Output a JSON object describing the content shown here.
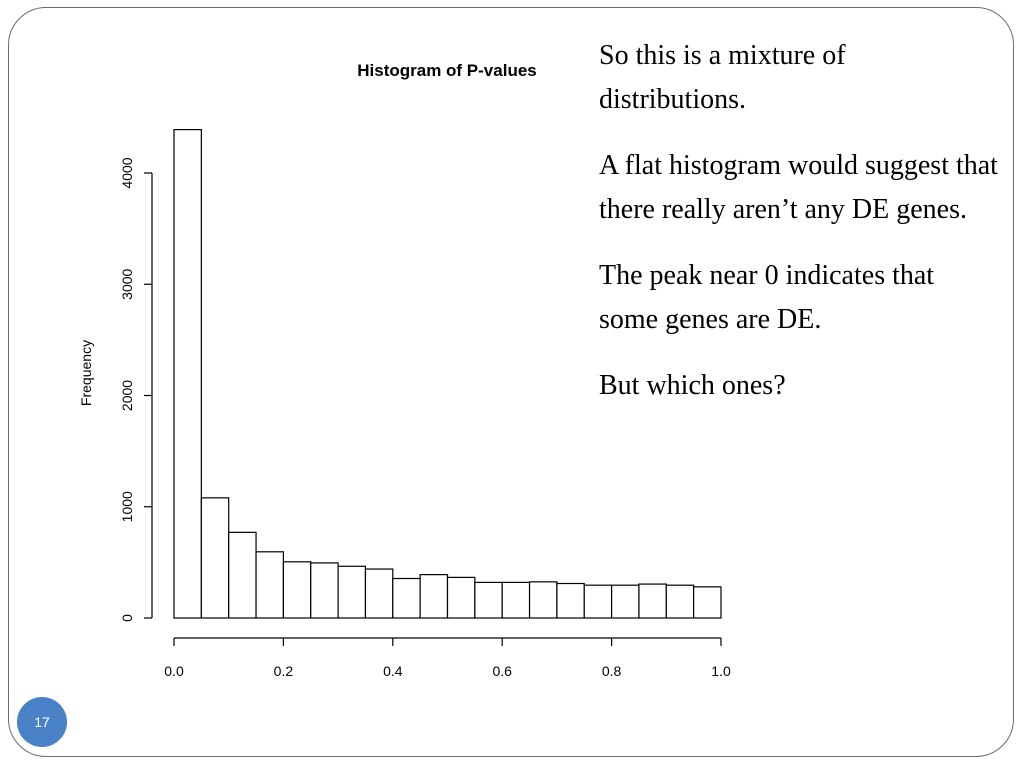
{
  "slide": {
    "number": "17",
    "bullets": [
      "So this is a mixture of distributions.",
      "A flat histogram would suggest that there really aren’t any DE genes.",
      "The peak near 0 indicates that some genes are DE.",
      "But which ones?"
    ]
  },
  "chart_data": {
    "type": "bar",
    "title": "Histogram of P-values",
    "xlabel": "",
    "ylabel": "Frequency",
    "bin_edges": [
      0.0,
      0.05,
      0.1,
      0.15,
      0.2,
      0.25,
      0.3,
      0.35,
      0.4,
      0.45,
      0.5,
      0.55,
      0.6,
      0.65,
      0.7,
      0.75,
      0.8,
      0.85,
      0.9,
      0.95,
      1.0
    ],
    "values": [
      4390,
      1080,
      770,
      595,
      505,
      495,
      465,
      440,
      355,
      390,
      365,
      320,
      320,
      325,
      310,
      295,
      295,
      305,
      295,
      280
    ],
    "xlim": [
      0,
      1
    ],
    "ylim": [
      0,
      4000
    ],
    "x_ticks": [
      "0.0",
      "0.2",
      "0.4",
      "0.6",
      "0.8",
      "1.0"
    ],
    "y_ticks": [
      "0",
      "1000",
      "2000",
      "3000",
      "4000"
    ],
    "grid": false,
    "bar_fill": "#ffffff",
    "bar_stroke": "#000000"
  }
}
